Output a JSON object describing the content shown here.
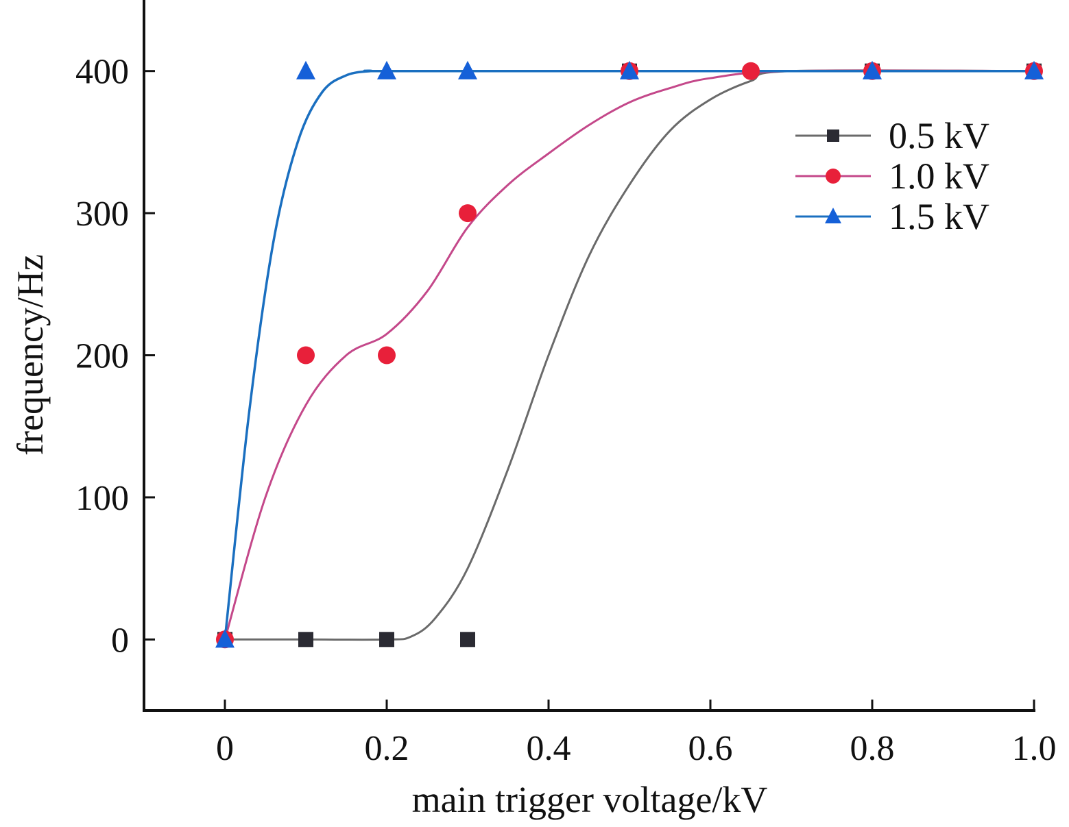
{
  "chart_data": {
    "type": "line",
    "title": "",
    "xlabel": "main trigger voltage/kV",
    "ylabel": "frequency/Hz",
    "xlim": [
      -0.1,
      1.0
    ],
    "ylim": [
      -50,
      450
    ],
    "xticks": [
      0,
      0.2,
      0.4,
      0.6,
      0.8,
      1.0
    ],
    "xtick_labels": [
      "0",
      "0.2",
      "0.4",
      "0.6",
      "0.8",
      "1.0"
    ],
    "yticks": [
      0,
      100,
      200,
      300,
      400
    ],
    "ytick_labels": [
      "0",
      "100",
      "200",
      "300",
      "400"
    ],
    "grid": false,
    "legend_position": "top-right",
    "series": [
      {
        "name": "0.5 kV",
        "marker": "square",
        "marker_color": "#2b2b33",
        "line_color": "#6a6a6a",
        "x": [
          0,
          0.1,
          0.2,
          0.3,
          0.5,
          0.8,
          1.0
        ],
        "y": [
          0,
          0,
          0,
          0,
          400,
          400,
          400
        ],
        "fit_x": [
          0,
          0.1,
          0.2,
          0.23,
          0.26,
          0.3,
          0.35,
          0.4,
          0.45,
          0.5,
          0.55,
          0.6,
          0.65,
          0.7,
          1.0
        ],
        "fit_y": [
          0,
          0,
          0,
          2,
          15,
          50,
          120,
          200,
          270,
          320,
          358,
          380,
          393,
          400,
          400
        ]
      },
      {
        "name": "1.0 kV",
        "marker": "circle",
        "marker_color": "#e8203a",
        "line_color": "#c4488a",
        "x": [
          0,
          0.1,
          0.2,
          0.3,
          0.5,
          0.65,
          0.8,
          1.0
        ],
        "y": [
          0,
          200,
          200,
          300,
          400,
          400,
          400,
          400
        ],
        "fit_x": [
          0,
          0.05,
          0.1,
          0.15,
          0.2,
          0.25,
          0.3,
          0.35,
          0.4,
          0.45,
          0.5,
          0.55,
          0.6,
          0.7,
          1.0
        ],
        "fit_y": [
          0,
          100,
          165,
          200,
          215,
          245,
          290,
          320,
          342,
          362,
          378,
          388,
          395,
          400,
          400
        ]
      },
      {
        "name": "1.5 kV",
        "marker": "triangle",
        "marker_color": "#1560d8",
        "line_color": "#1a6fc0",
        "x": [
          0,
          0.1,
          0.2,
          0.3,
          0.5,
          0.8,
          1.0
        ],
        "y": [
          0,
          400,
          400,
          400,
          400,
          400,
          400
        ],
        "fit_x": [
          0,
          0.03,
          0.06,
          0.09,
          0.12,
          0.15,
          0.18,
          0.2,
          0.5,
          1.0
        ],
        "fit_y": [
          0,
          160,
          280,
          350,
          385,
          397,
          400,
          400,
          400,
          400
        ]
      }
    ]
  }
}
